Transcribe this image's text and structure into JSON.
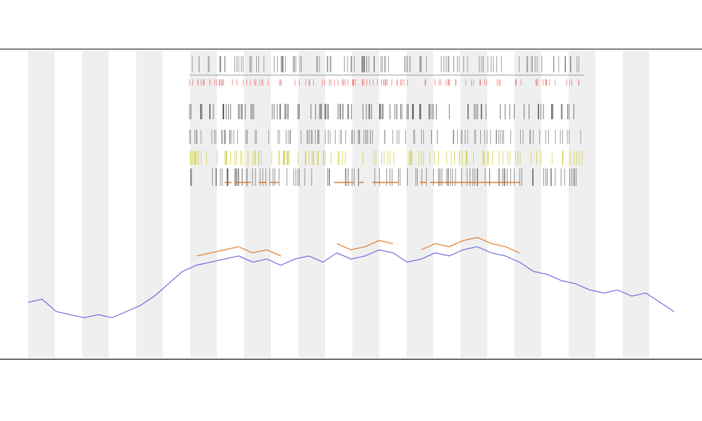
{
  "chart_data": {
    "type": "line",
    "x": [
      0,
      1,
      2,
      3,
      4,
      5,
      6,
      7,
      8,
      9,
      10,
      11,
      12,
      13,
      14,
      15,
      16,
      17,
      18,
      19,
      20,
      21,
      22,
      23,
      24,
      25,
      26,
      27,
      28,
      29,
      30,
      31,
      32,
      33,
      34,
      35,
      36,
      37,
      38,
      39,
      40,
      41,
      42,
      43,
      44,
      45,
      46
    ],
    "xlim": [
      0,
      46
    ],
    "ylim": [
      0,
      100
    ],
    "series": [
      {
        "color": "#6a6ae0",
        "values": [
          18,
          19,
          15,
          14,
          13,
          14,
          13,
          15,
          17,
          20,
          24,
          28,
          30,
          31,
          32,
          33,
          31,
          32,
          30,
          32,
          33,
          31,
          34,
          32,
          33,
          35,
          34,
          31,
          32,
          34,
          33,
          35,
          36,
          34,
          33,
          31,
          28,
          27,
          25,
          24,
          22,
          21,
          22,
          20,
          21,
          18,
          15
        ]
      },
      {
        "color": "#e07a28",
        "values": [
          null,
          null,
          null,
          null,
          null,
          null,
          null,
          null,
          null,
          null,
          null,
          null,
          33,
          34,
          35,
          36,
          34,
          35,
          33,
          null,
          null,
          null,
          37,
          35,
          36,
          38,
          37,
          null,
          35,
          37,
          36,
          38,
          39,
          37,
          36,
          34,
          null,
          null,
          null,
          null,
          null,
          null,
          null,
          null,
          null,
          null,
          null
        ]
      }
    ]
  }
}
